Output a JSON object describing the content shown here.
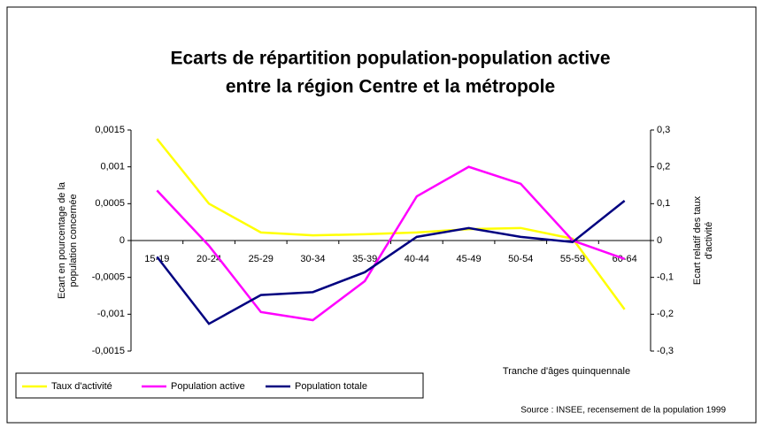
{
  "chart_data": {
    "type": "line",
    "title": [
      "Ecarts de répartition population-population active",
      "entre la région Centre et la métropole"
    ],
    "ylabel": [
      "Ecart en pourcentage de la",
      "population concernée"
    ],
    "y2label": [
      "Ecart relatif des taux",
      "d'activité"
    ],
    "xlabel": "Tranche d'âges quinquennale",
    "source": "Source : INSEE, recensement de la population 1999",
    "categories": [
      "15-19",
      "20-24",
      "25-29",
      "30-34",
      "35-39",
      "40-44",
      "45-49",
      "50-54",
      "55-59",
      "60-64"
    ],
    "series": [
      {
        "name": "Taux d'activité",
        "color": "#ffff00",
        "axis": "y2",
        "values": [
          0.276,
          0.1,
          0.022,
          0.014,
          0.017,
          0.022,
          0.031,
          0.034,
          0.005,
          -0.187
        ]
      },
      {
        "name": "Population active",
        "color": "#ff00ff",
        "values": [
          0.00068,
          -7e-05,
          -0.00097,
          -0.00108,
          -0.00055,
          0.0006,
          0.001,
          0.00077,
          0,
          -0.00025
        ]
      },
      {
        "name": "Population totale",
        "color": "#000080",
        "values": [
          -0.00022,
          -0.00113,
          -0.00074,
          -0.0007,
          -0.00043,
          5e-05,
          0.00017,
          5e-05,
          -2e-05,
          0.00054
        ]
      }
    ],
    "ylim": [
      -0.0015,
      0.0015
    ],
    "yticks": [
      {
        "value": -0.0015,
        "label": "-0,0015"
      },
      {
        "value": -0.001,
        "label": "-0,001"
      },
      {
        "value": -0.0005,
        "label": "-0,0005"
      },
      0,
      {
        "value": 0.0005,
        "label": "0,0005"
      },
      {
        "value": 0.001,
        "label": "0,001"
      },
      {
        "value": 0.0015,
        "label": "0,0015"
      }
    ],
    "y2lim": [
      -0.3,
      0.3
    ],
    "y2ticks": [
      {
        "value": -0.3,
        "label": "-0,3"
      },
      {
        "value": -0.2,
        "label": "-0,2"
      },
      {
        "value": -0.1,
        "label": "-0,1"
      },
      0,
      {
        "value": 0.1,
        "label": "0,1"
      },
      {
        "value": 0.2,
        "label": "0,2"
      },
      {
        "value": 0.3,
        "label": "0,3"
      }
    ],
    "legend": "bottom-left"
  }
}
